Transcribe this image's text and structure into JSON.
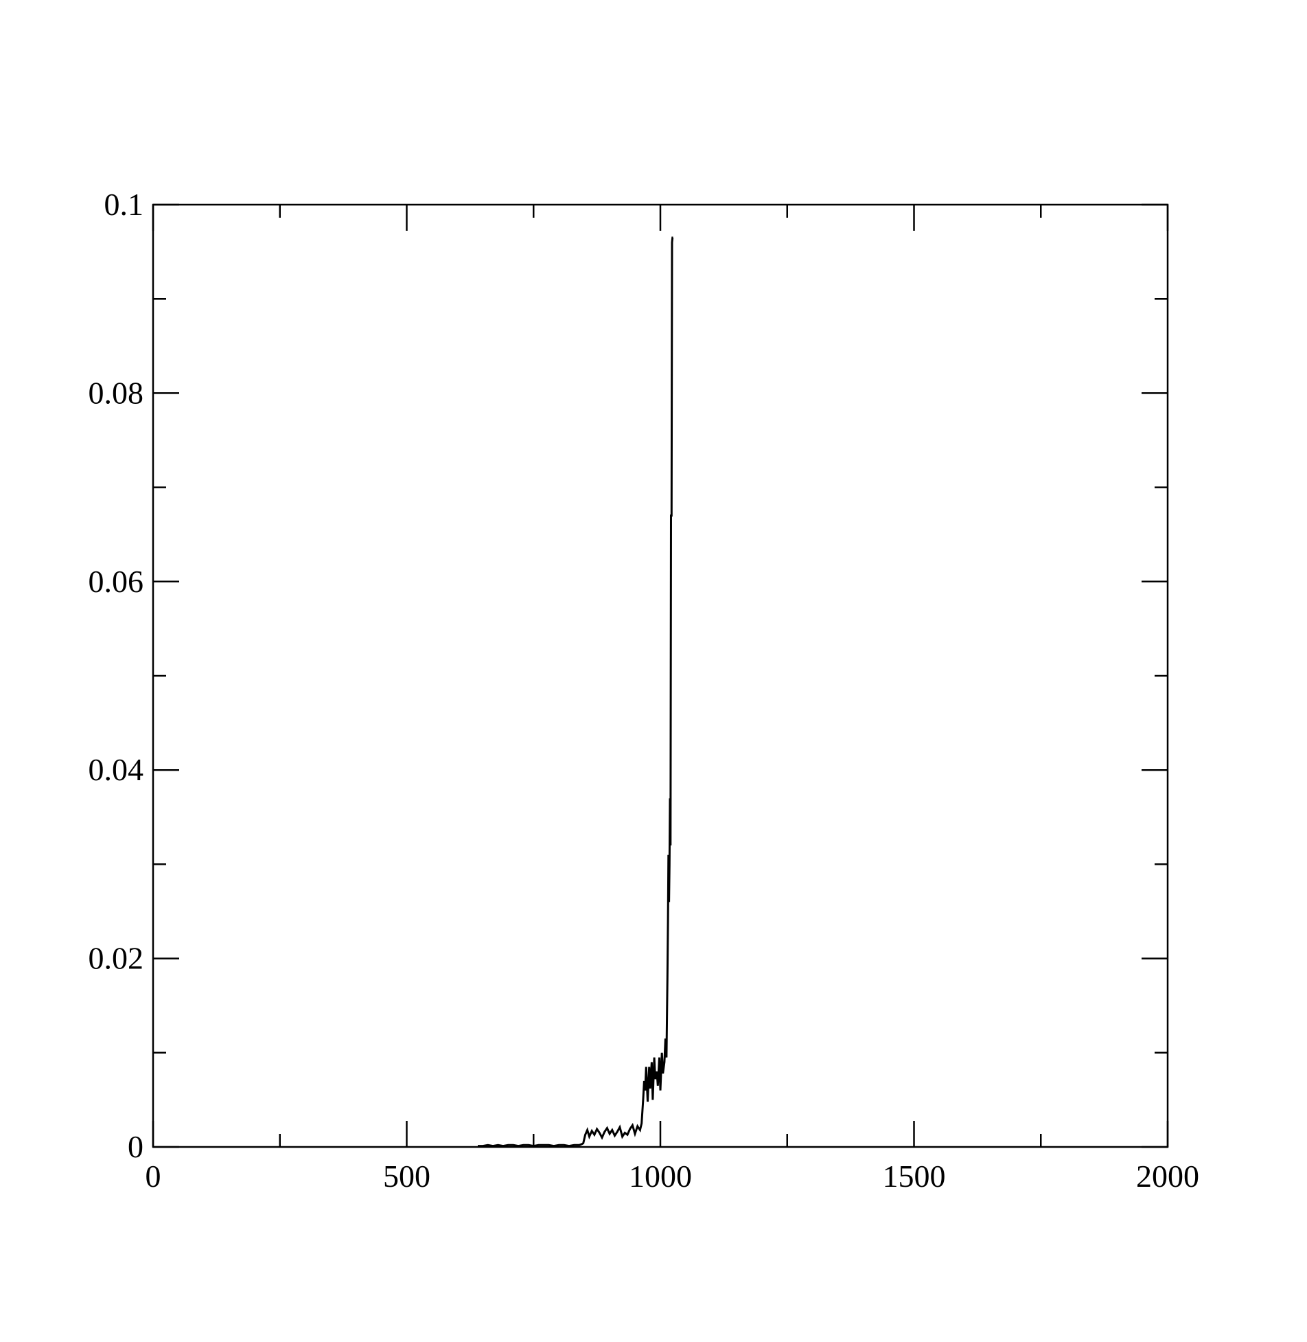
{
  "chart_data": {
    "type": "line",
    "title": "",
    "xlabel": "",
    "ylabel": "",
    "xlim": [
      0,
      2000
    ],
    "ylim": [
      0,
      0.1
    ],
    "grid": false,
    "x_ticks": [
      0,
      500,
      1000,
      1500,
      2000
    ],
    "x_tick_labels": [
      "0",
      "500",
      "1000",
      "1500",
      "2000"
    ],
    "y_ticks": [
      0,
      0.02,
      0.04,
      0.06,
      0.08,
      0.1
    ],
    "y_tick_labels": [
      "0",
      "0.02",
      "0.04",
      "0.06",
      "0.08",
      "0.1"
    ],
    "line_color": "#000000",
    "series": [
      {
        "x": [
          640,
          650,
          660,
          670,
          680,
          690,
          700,
          710,
          720,
          730,
          740,
          750,
          760,
          770,
          780,
          790,
          800,
          810,
          820,
          830,
          840,
          845,
          848,
          852,
          856,
          860,
          865,
          870,
          875,
          880,
          885,
          890,
          895,
          900,
          905,
          910,
          915,
          920,
          925,
          930,
          935,
          940,
          945,
          950,
          955,
          960,
          963,
          966,
          968,
          970,
          972,
          975,
          978,
          980,
          983,
          985,
          988,
          990,
          993,
          995,
          998,
          1000,
          1003,
          1005,
          1008,
          1010,
          1012,
          1014,
          1015,
          1016,
          1017,
          1018,
          1019,
          1020,
          1021,
          1022,
          1023,
          1024,
          1025
        ],
        "y": [
          0.0001,
          0.0001,
          0.0002,
          0.0001,
          0.0002,
          0.0001,
          0.0002,
          0.0002,
          0.0001,
          0.0002,
          0.0002,
          0.0001,
          0.0002,
          0.0002,
          0.0002,
          0.0001,
          0.0002,
          0.0002,
          0.0001,
          0.0002,
          0.0002,
          0.0003,
          0.0004,
          0.0013,
          0.0018,
          0.0011,
          0.0017,
          0.0013,
          0.0019,
          0.0015,
          0.001,
          0.0016,
          0.002,
          0.0014,
          0.0018,
          0.0012,
          0.0016,
          0.0021,
          0.0011,
          0.0015,
          0.0013,
          0.0019,
          0.0023,
          0.0014,
          0.0022,
          0.0018,
          0.0025,
          0.005,
          0.007,
          0.006,
          0.0085,
          0.0048,
          0.0085,
          0.0062,
          0.009,
          0.005,
          0.0095,
          0.0072,
          0.008,
          0.0065,
          0.0095,
          0.006,
          0.01,
          0.0078,
          0.009,
          0.0115,
          0.0095,
          0.018,
          0.024,
          0.031,
          0.026,
          0.03,
          0.037,
          0.032,
          0.067,
          0.067,
          0.096,
          0.0965,
          0.0965
        ]
      }
    ]
  }
}
